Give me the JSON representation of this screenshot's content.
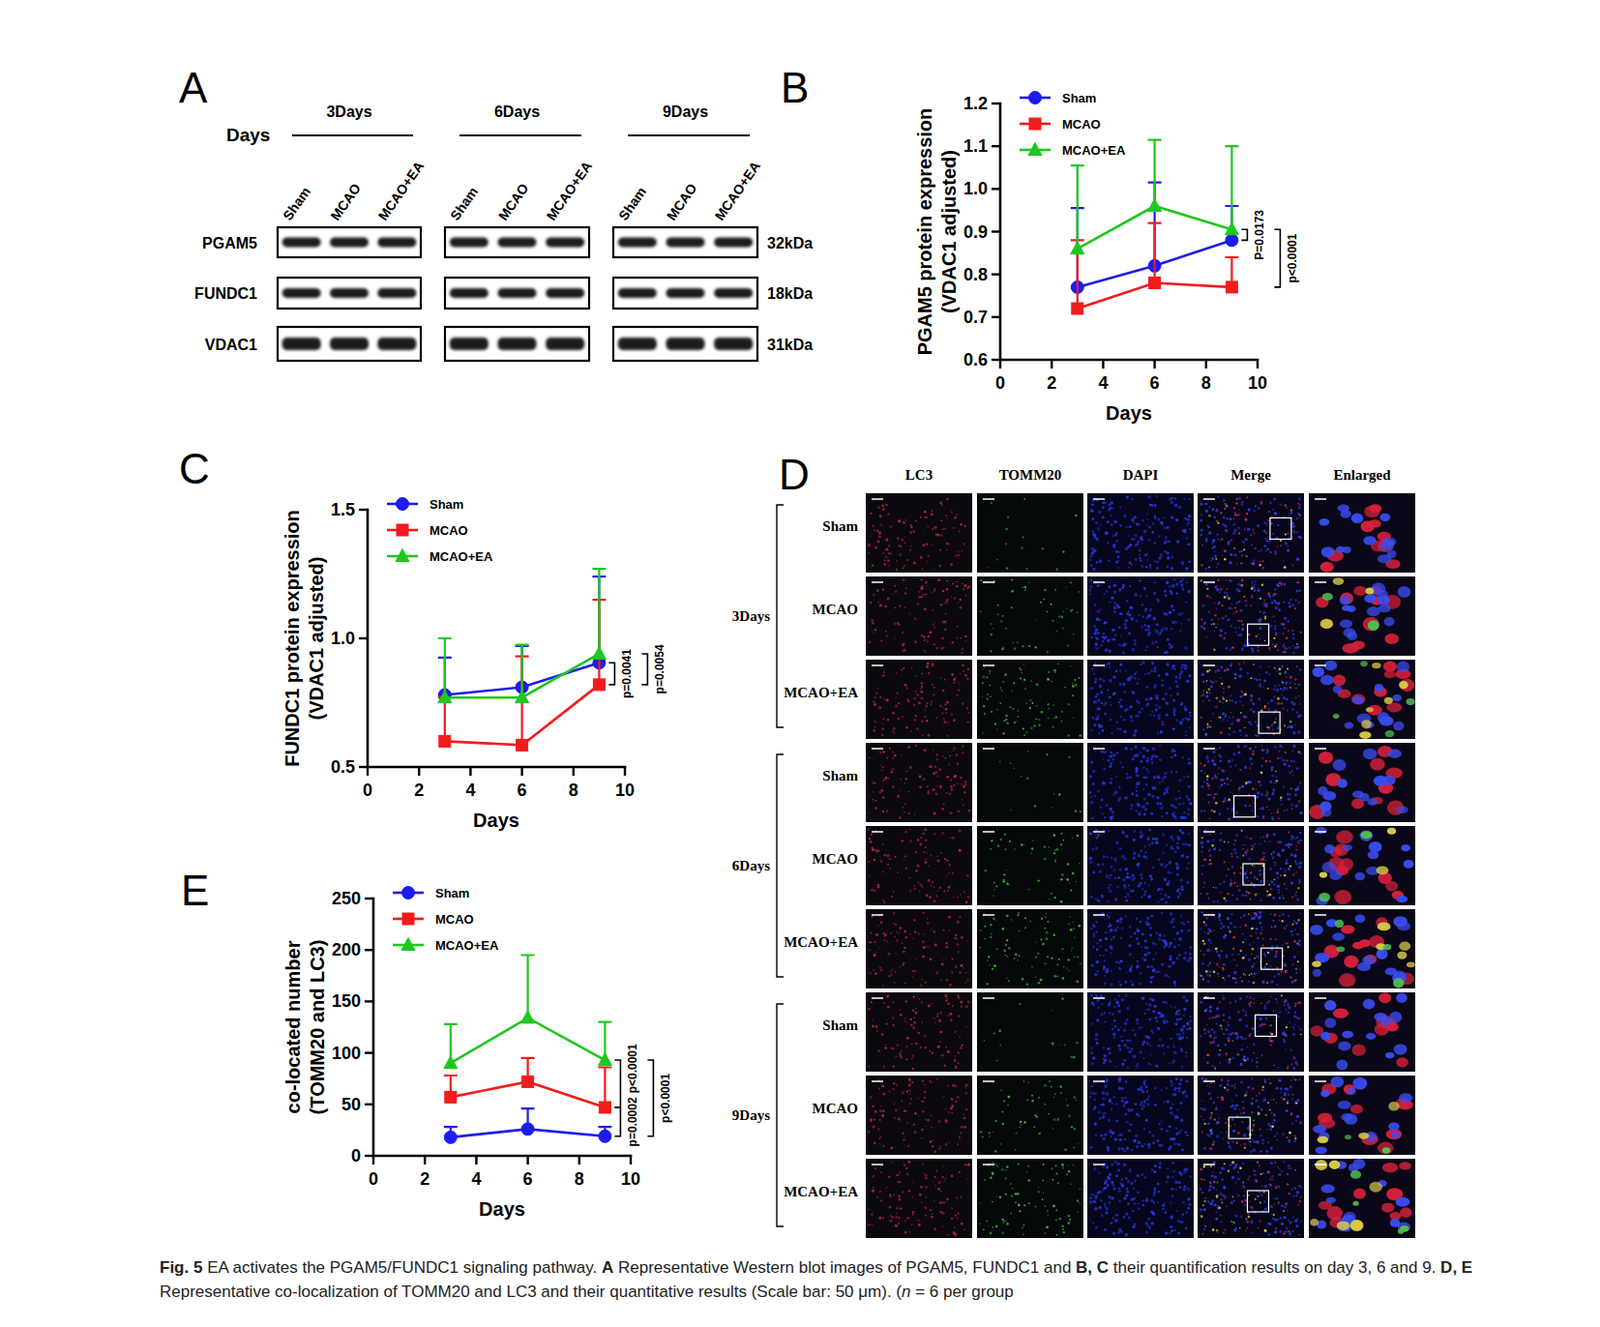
{
  "panel_labels": [
    "A",
    "B",
    "C",
    "D",
    "E"
  ],
  "western_blot": {
    "axis_label": "Days",
    "groups": [
      "3Days",
      "6Days",
      "9Days"
    ],
    "lanes": [
      "Sham",
      "MCAO",
      "MCAO+EA"
    ],
    "proteins": [
      {
        "name": "PGAM5",
        "size": "32kDa"
      },
      {
        "name": "FUNDC1",
        "size": "18kDa"
      },
      {
        "name": "VDAC1",
        "size": "31kDa"
      }
    ]
  },
  "chart_data": [
    {
      "type": "line",
      "y_label": [
        "PGAM5 protein expression",
        "(VDAC1 adjusted)"
      ],
      "x_label": "Days",
      "x": [
        3,
        6,
        9
      ],
      "xlim": [
        0,
        10
      ],
      "xticks": [
        0,
        2,
        4,
        6,
        8,
        10
      ],
      "ylim": [
        0.6,
        1.2
      ],
      "yticks": [
        0.6,
        0.7,
        0.8,
        0.9,
        {
          "value": 1,
          "label": "1.0"
        },
        1.1,
        1.2
      ],
      "legend": "upper left",
      "series": [
        {
          "name": "Sham",
          "color": "#1c1cf0",
          "marker": "circle",
          "values": [
            0.77,
            0.82,
            0.88
          ],
          "errors": [
            0.185,
            0.195,
            0.08
          ]
        },
        {
          "name": "MCAO",
          "color": "#f21c1c",
          "marker": "square",
          "values": [
            0.72,
            0.78,
            0.77
          ],
          "errors": [
            0.16,
            0.14,
            0.07
          ]
        },
        {
          "name": "MCAO+EA",
          "color": "#1ec81e",
          "marker": "triangle",
          "values": [
            0.86,
            0.96,
            0.905
          ],
          "errors": [
            0.195,
            0.155,
            0.195
          ]
        }
      ],
      "annotations": [
        {
          "text": "P=0.0173",
          "between": [
            "Sham",
            "MCAO+EA"
          ]
        },
        {
          "text": "p<0.0001",
          "between": [
            "MCAO",
            "MCAO+EA"
          ]
        }
      ]
    },
    {
      "type": "line",
      "y_label": [
        "FUNDC1 protein expression",
        "(VDAC1 adjusted)"
      ],
      "x_label": "Days",
      "x": [
        3,
        6,
        9
      ],
      "xlim": [
        0,
        10
      ],
      "xticks": [
        0,
        2,
        4,
        6,
        8,
        10
      ],
      "ylim": [
        0.5,
        1.5
      ],
      "yticks": [
        0.5,
        {
          "value": 1,
          "label": "1.0"
        },
        1.5
      ],
      "legend": "upper left",
      "series": [
        {
          "name": "Sham",
          "color": "#1c1cf0",
          "marker": "circle",
          "values": [
            0.78,
            0.81,
            0.905
          ],
          "errors": [
            0.145,
            0.16,
            0.335
          ]
        },
        {
          "name": "MCAO",
          "color": "#f21c1c",
          "marker": "square",
          "values": [
            0.6,
            0.585,
            0.82
          ],
          "errors": [
            0.17,
            0.345,
            0.33
          ]
        },
        {
          "name": "MCAO+EA",
          "color": "#1ec81e",
          "marker": "triangle",
          "values": [
            0.77,
            0.77,
            0.94
          ],
          "errors": [
            0.23,
            0.205,
            0.33
          ]
        }
      ],
      "annotations": [
        {
          "text": "p=0.0041",
          "between": [
            "Sham",
            "MCAO"
          ]
        },
        {
          "text": "p=0.0054",
          "between": [
            "MCAO",
            "MCAO+EA"
          ]
        }
      ]
    },
    {
      "type": "line",
      "y_label": [
        "co-located number",
        "(TOMM20 and LC3)"
      ],
      "x_label": "Days",
      "x": [
        3,
        6,
        9
      ],
      "xlim": [
        0,
        10
      ],
      "xticks": [
        0,
        2,
        4,
        6,
        8,
        10
      ],
      "ylim": [
        0,
        250
      ],
      "yticks": [
        0,
        50,
        100,
        150,
        200,
        250
      ],
      "legend": "upper left",
      "series": [
        {
          "name": "Sham",
          "color": "#1c1cf0",
          "marker": "circle",
          "values": [
            18,
            26,
            19
          ],
          "errors": [
            10,
            20,
            9
          ]
        },
        {
          "name": "MCAO",
          "color": "#f21c1c",
          "marker": "square",
          "values": [
            57,
            72,
            47
          ],
          "errors": [
            21,
            23,
            39
          ]
        },
        {
          "name": "MCAO+EA",
          "color": "#1ec81e",
          "marker": "triangle",
          "values": [
            90,
            134,
            93
          ],
          "errors": [
            38,
            61,
            37
          ]
        }
      ],
      "annotations": [
        {
          "text": "p<0.0001",
          "between": [
            "MCAO",
            "MCAO+EA"
          ]
        },
        {
          "text": "p=0.0002",
          "between": [
            "Sham",
            "MCAO"
          ]
        },
        {
          "text": "p<0.0001",
          "between": [
            "Sham",
            "MCAO+EA"
          ]
        }
      ]
    }
  ],
  "if_images": {
    "columns": [
      "LC3",
      "TOMM20",
      "DAPI",
      "Merge",
      "Enlarged"
    ],
    "groups": [
      "3Days",
      "6Days",
      "9Days"
    ],
    "rows": [
      "Sham",
      "MCAO",
      "MCAO+EA"
    ]
  },
  "caption": [
    {
      "text": "Fig. 5",
      "bold": true
    },
    {
      "text": " EA activates the PGAM5/FUNDC1 signaling pathway. "
    },
    {
      "text": "A",
      "bold": true
    },
    {
      "text": " Representative Western blot images of PGAM5, FUNDC1 and "
    },
    {
      "text": "B, C",
      "bold": true
    },
    {
      "text": " their quantification results on day 3, 6 and 9. "
    },
    {
      "text": "D, E",
      "bold": true
    },
    {
      "text": " Representative co-localization of TOMM20 and LC3 and their quantitative results (Scale bar: 50 μm). ("
    },
    {
      "text": "n",
      "italic": true
    },
    {
      "text": " = 6 per group"
    }
  ]
}
